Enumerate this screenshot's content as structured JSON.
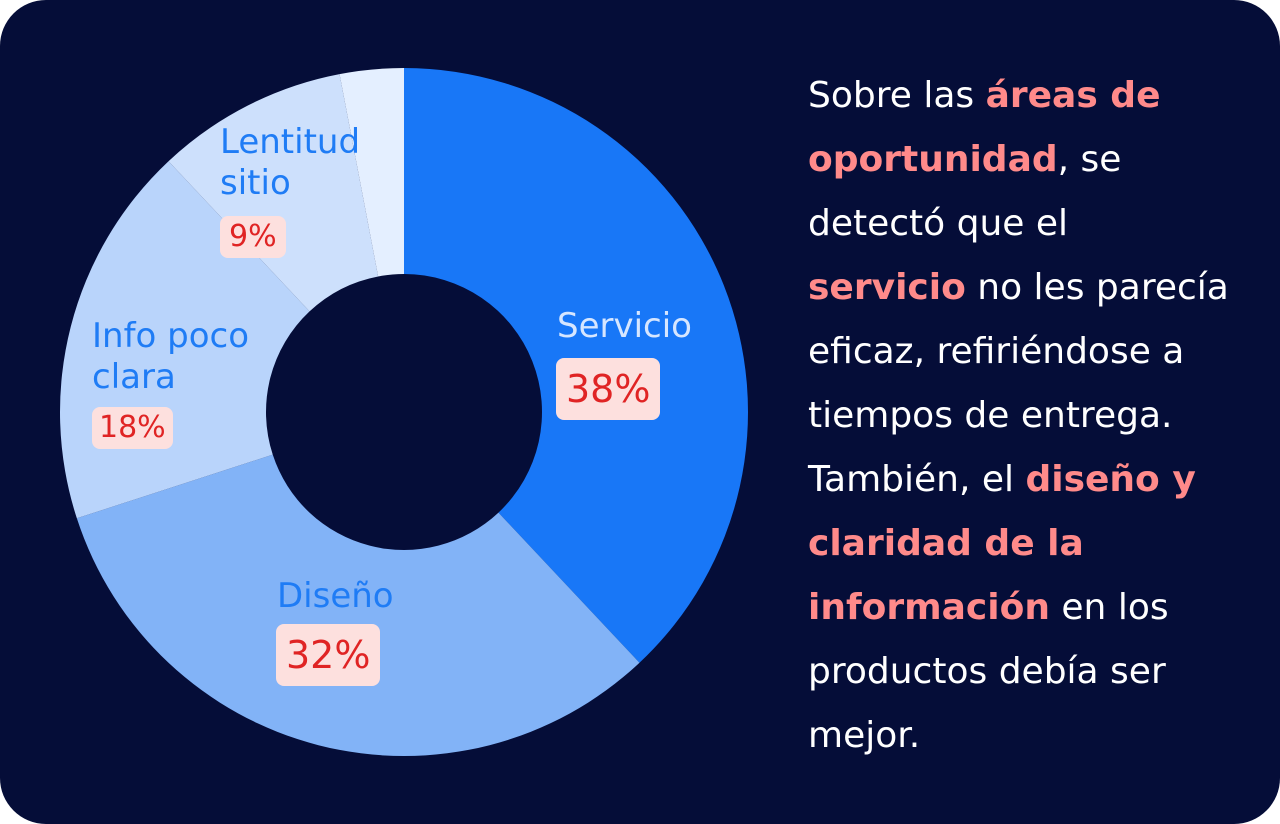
{
  "chart_data": {
    "type": "pie",
    "donut": true,
    "slices": [
      {
        "label": "Servicio",
        "value": 38,
        "pct_label": "38%",
        "color": "#1877f7"
      },
      {
        "label": "Diseño",
        "value": 32,
        "pct_label": "32%",
        "color": "#82b3f7"
      },
      {
        "label": "Info poco clara",
        "label_lines": [
          "Info poco",
          "clara"
        ],
        "value": 18,
        "pct_label": "18%",
        "color": "#b9d4fb"
      },
      {
        "label": "Lentitud sitio",
        "label_lines": [
          "Lentitud",
          "sitio"
        ],
        "value": 9,
        "pct_label": "9%",
        "color": "#cde0fc"
      },
      {
        "label": "",
        "value": 3,
        "pct_label": "",
        "color": "#e4efff"
      }
    ],
    "start_at": "top",
    "direction": "clockwise"
  },
  "colors": {
    "background": "#050d38",
    "highlight": "#ff8a8a",
    "label": "#1f7cf5",
    "percent_text": "#e02424",
    "percent_bg": "#fde0de"
  },
  "description_lines": [
    [
      {
        "t": "Sobre las "
      },
      {
        "t": "áreas de",
        "h": true
      }
    ],
    [
      {
        "t": "oportunidad",
        "h": true
      },
      {
        "t": ", se"
      }
    ],
    [
      {
        "t": "detectó que el"
      }
    ],
    [
      {
        "t": "servicio",
        "h": true
      },
      {
        "t": " no les parecía"
      }
    ],
    [
      {
        "t": "eficaz, refiriéndose a"
      }
    ],
    [
      {
        "t": "tiempos de entrega."
      }
    ],
    [
      {
        "t": "También, el "
      },
      {
        "t": "diseño y",
        "h": true
      }
    ],
    [
      {
        "t": "claridad de la",
        "h": true
      }
    ],
    [
      {
        "t": "información",
        "h": true
      },
      {
        "t": " en los"
      }
    ],
    [
      {
        "t": "productos debía ser"
      }
    ],
    [
      {
        "t": "mejor."
      }
    ]
  ]
}
